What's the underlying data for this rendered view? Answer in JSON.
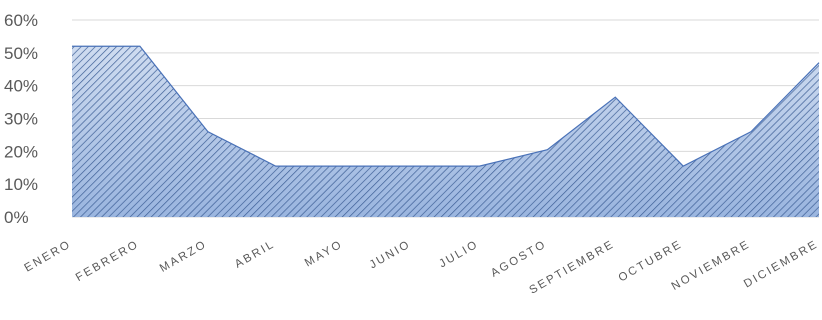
{
  "chart_data": {
    "type": "area",
    "title": "",
    "xlabel": "",
    "ylabel": "",
    "categories": [
      "ENERO",
      "FEBRERO",
      "MARZO",
      "ABRIL",
      "MAYO",
      "JUNIO",
      "JULIO",
      "AGOSTO",
      "SEPTIEMBRE",
      "OCTUBRE",
      "NOVIEMBRE",
      "DICIEMBRE"
    ],
    "values": [
      52,
      52,
      26,
      15.5,
      15.5,
      15.5,
      15.5,
      20.5,
      36.5,
      15.5,
      26,
      47
    ],
    "ylim": [
      0,
      60
    ],
    "yticks": [
      0,
      10,
      20,
      30,
      40,
      50,
      60
    ],
    "ytick_labels": [
      "0%",
      "10%",
      "20%",
      "30%",
      "40%",
      "50%",
      "60%"
    ],
    "grid": true,
    "legend": "none",
    "colors": {
      "fill_top": "#cfdcf0",
      "fill_bottom": "#9ab5df",
      "stroke": "#4a72b8",
      "hatch": "#3d5f96",
      "grid": "#d9d9d9",
      "text": "#595959"
    }
  }
}
